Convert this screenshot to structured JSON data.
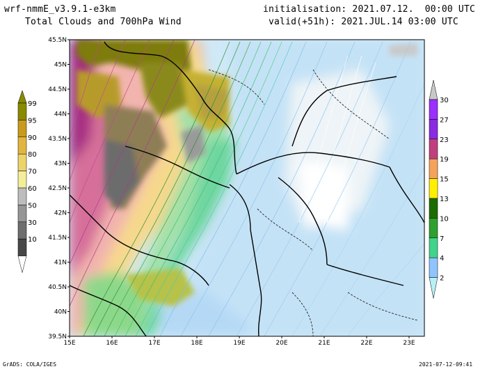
{
  "header": {
    "model": "wrf-nmmE_v3.9.1-e3km",
    "subtitle": "Total Clouds and 700hPa Wind",
    "init": "initialisation: 2021.07.12.  00:00 UTC",
    "valid": "valid(+51h): 2021.JUL.14 03:00 UTC"
  },
  "footer": {
    "left": "GrADS: COLA/IGES",
    "right": "2021-07-12-09:41"
  },
  "map": {
    "lat_labels": [
      "45.5N",
      "45N",
      "44.5N",
      "44N",
      "43.5N",
      "43N",
      "42.5N",
      "42N",
      "41.5N",
      "41N",
      "40.5N",
      "40N",
      "39.5N"
    ],
    "lon_labels": [
      "15E",
      "16E",
      "17E",
      "18E",
      "19E",
      "20E",
      "21E",
      "22E",
      "23E"
    ]
  },
  "cloud_colorbar": {
    "labels": [
      "99",
      "95",
      "90",
      "80",
      "70",
      "60",
      "50",
      "30",
      "10"
    ],
    "colors": [
      "#8a8a00",
      "#c89b1c",
      "#e2b63e",
      "#ecd46a",
      "#f4ee9a",
      "#bdbdbd",
      "#969696",
      "#6e6e6e",
      "#474747"
    ]
  },
  "wind_colorbar": {
    "labels": [
      "30",
      "27",
      "23",
      "19",
      "15",
      "13",
      "10",
      "7",
      "4",
      "2"
    ],
    "colors": [
      "#9b30ff",
      "#8a2be2",
      "#c0407f",
      "#f5a35a",
      "#fff000",
      "#1c6d00",
      "#2ea02e",
      "#3fd48c",
      "#8fc4ff",
      "#b8f0f4"
    ]
  }
}
